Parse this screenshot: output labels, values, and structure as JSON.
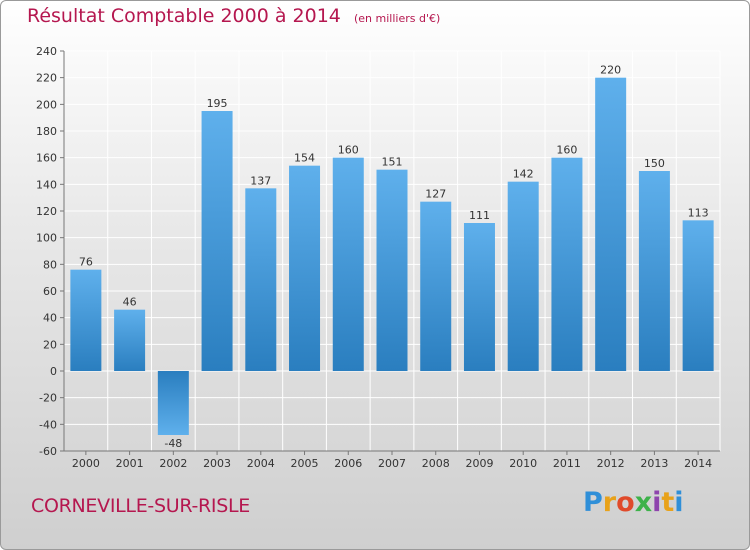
{
  "header": {
    "title": "Résultat Comptable 2000 à 2014",
    "subtitle": "(en milliers d'€)"
  },
  "footer": {
    "commune": "CORNEVILLE-SUR-RISLE",
    "logo_text": "Proxiti",
    "logo_colors": [
      "#2f8fd8",
      "#e8a21a",
      "#e04a2a",
      "#3db24a",
      "#8e44ad",
      "#e8a21a",
      "#2f8fd8"
    ]
  },
  "colors": {
    "title": "#b5174f",
    "bar_light": "#5fb0ec",
    "bar_dark": "#2a7ebf",
    "grid": "#ffffff"
  },
  "chart_data": {
    "type": "bar",
    "title": "Résultat Comptable 2000 à 2014",
    "subtitle": "(en milliers d'€)",
    "categories": [
      "2000",
      "2001",
      "2002",
      "2003",
      "2004",
      "2005",
      "2006",
      "2007",
      "2008",
      "2009",
      "2010",
      "2011",
      "2012",
      "2013",
      "2014"
    ],
    "values": [
      76,
      46,
      -48,
      195,
      137,
      154,
      160,
      151,
      127,
      111,
      142,
      160,
      220,
      150,
      113
    ],
    "data_labels": [
      "76",
      "46",
      "-48",
      "195",
      "137",
      "154",
      "160",
      "151",
      "127",
      "111",
      "142",
      "160",
      "220",
      "150",
      "113"
    ],
    "ylim": [
      -60,
      240
    ],
    "yticks": [
      -60,
      -40,
      -20,
      0,
      20,
      40,
      60,
      80,
      100,
      120,
      140,
      160,
      180,
      200,
      220,
      240
    ],
    "ytick_labels": [
      "-60",
      "-40",
      "-20",
      "0",
      "20",
      "40",
      "60",
      "80",
      "100",
      "120",
      "140",
      "160",
      "180",
      "200",
      "220",
      "240"
    ],
    "grid": true,
    "xlabel": "",
    "ylabel": ""
  }
}
